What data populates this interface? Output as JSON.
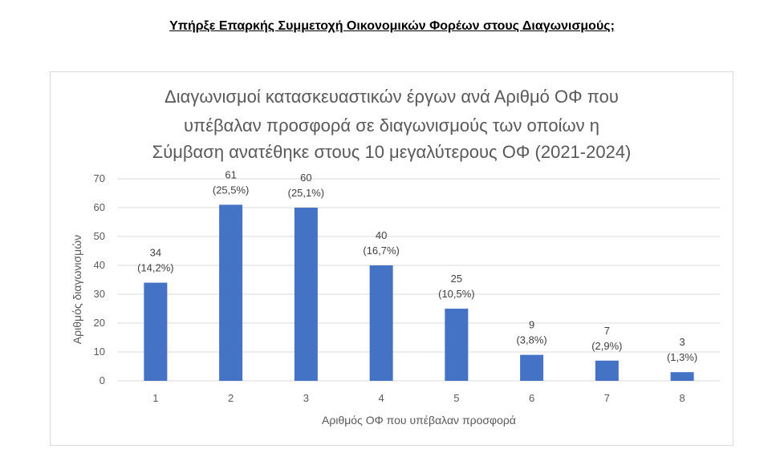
{
  "heading": "Υπήρξε Επαρκής Συμμετοχή Οικονομικών Φορέων στους Διαγωνισμούς;",
  "colors": {
    "bar": "#4472C4",
    "grid": "#d9d9d9",
    "text": "#595959"
  },
  "chart_data": {
    "type": "bar",
    "title_lines": [
      "Διαγωνισμοί κατασκευαστικών έργων ανά Αριθμό ΟΦ που",
      "υπέβαλαν προσφορά σε διαγωνισμούς των οποίων η",
      "Σύμβαση ανατέθηκε στους 10 μεγαλύτερους ΟΦ (2021-2024)"
    ],
    "categories": [
      "1",
      "2",
      "3",
      "4",
      "5",
      "6",
      "7",
      "8"
    ],
    "values": [
      34,
      61,
      60,
      40,
      25,
      9,
      7,
      3
    ],
    "percent_labels": [
      "(14,2%)",
      "(25,5%)",
      "(25,1%)",
      "(16,7%)",
      "(10,5%)",
      "(3,8%)",
      "(2,9%)",
      "(1,3%)"
    ],
    "xlabel": "Αριθμός ΟΦ που υπέβαλαν προσφορά",
    "ylabel": "Αριθμός διαγωνισμών",
    "ylim": [
      0,
      70
    ],
    "yticks": [
      0,
      10,
      20,
      30,
      40,
      50,
      60,
      70
    ],
    "grid": true,
    "legend": "none"
  }
}
